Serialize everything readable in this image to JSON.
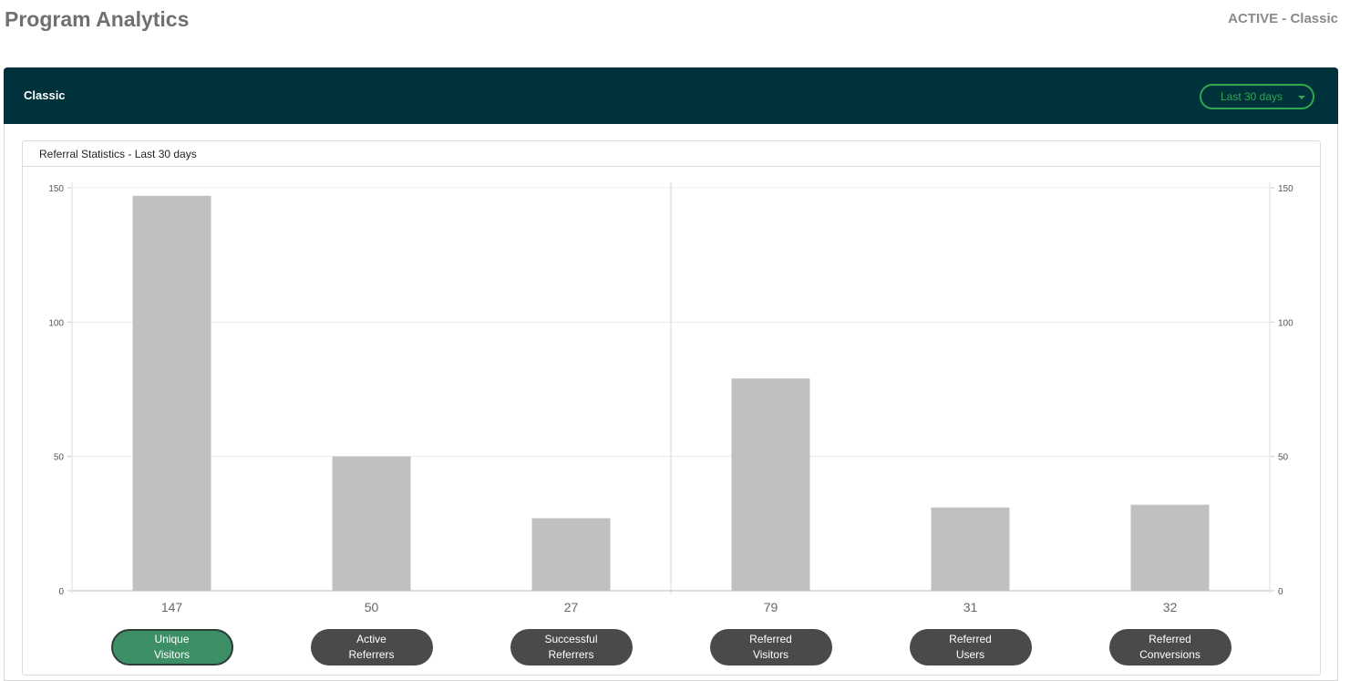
{
  "header": {
    "title": "Program Analytics",
    "status": "ACTIVE - Classic"
  },
  "card": {
    "title": "Classic",
    "range_dropdown": {
      "selected": "Last 30 days",
      "icon": "caret-down-icon"
    }
  },
  "panel": {
    "title": "Referral Statistics - Last 30 days"
  },
  "colors": {
    "header_bg": "#00323b",
    "accent_green": "#2fa84f",
    "bar": "#c0c0c0",
    "pill": "#4a4a4a",
    "pill_active": "#3d8f66"
  },
  "chart_data": {
    "type": "bar",
    "categories": [
      "Unique Visitors",
      "Active Referrers",
      "Successful Referrers",
      "Referred Visitors",
      "Referred Users",
      "Referred Conversions"
    ],
    "values": [
      147,
      50,
      27,
      79,
      31,
      32
    ],
    "value_labels": [
      "147",
      "50",
      "27",
      "79",
      "31",
      "32"
    ],
    "ylim": [
      0,
      150
    ],
    "yticks": [
      0,
      50,
      100,
      150
    ],
    "ytick_labels": [
      "0",
      "50",
      "100",
      "150"
    ],
    "right_axis_ticks": [
      "0",
      "50",
      "100",
      "150"
    ],
    "grid": true,
    "divider_after_index": 2,
    "active_category": 0
  },
  "metric_buttons": [
    {
      "line1": "Unique",
      "line2": "Visitors",
      "active": true
    },
    {
      "line1": "Active",
      "line2": "Referrers",
      "active": false
    },
    {
      "line1": "Successful",
      "line2": "Referrers",
      "active": false
    },
    {
      "line1": "Referred",
      "line2": "Visitors",
      "active": false
    },
    {
      "line1": "Referred",
      "line2": "Users",
      "active": false
    },
    {
      "line1": "Referred",
      "line2": "Conversions",
      "active": false
    }
  ]
}
